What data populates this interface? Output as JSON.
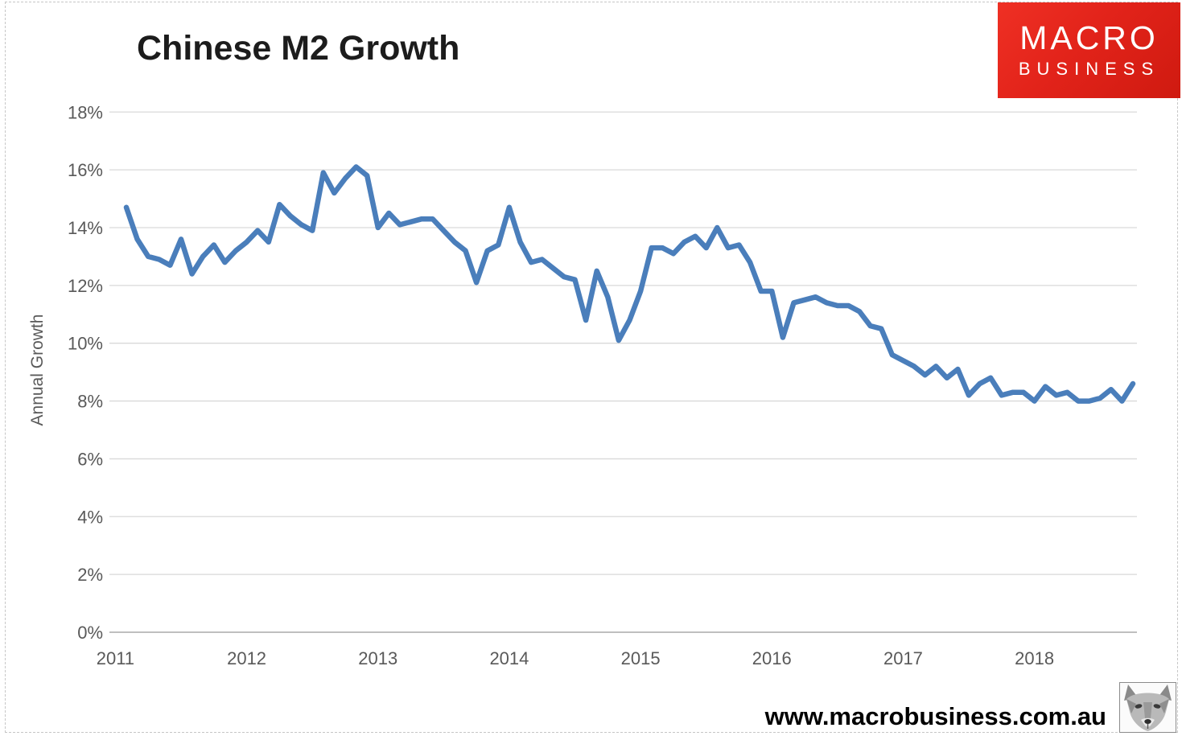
{
  "page": {
    "title": "Chinese M2 Growth",
    "website": "www.macrobusiness.com.au",
    "logo": {
      "line1": "MACRO",
      "line2": "BUSINESS",
      "bg_color": "#e2231a",
      "text_color": "#ffffff"
    }
  },
  "chart_data": {
    "type": "line",
    "title": "Chinese M2 Growth",
    "xlabel": "",
    "ylabel": "Annual Growth",
    "legend_position": "none",
    "grid": "horizontal",
    "series_name": "Chinese M2 annual growth",
    "series_color": "#4a7ebb",
    "grid_color": "#d9d9d9",
    "axis_color": "#bfbfbf",
    "tick_label_color": "#595959",
    "ylim": [
      0,
      18
    ],
    "y_ticks": [
      0,
      2,
      4,
      6,
      8,
      10,
      12,
      14,
      16,
      18
    ],
    "y_tick_suffix": "%",
    "x_tick_years": [
      "2011",
      "2012",
      "2013",
      "2014",
      "2015",
      "2016",
      "2017",
      "2018"
    ],
    "x": [
      "2011-07",
      "2011-08",
      "2011-09",
      "2011-10",
      "2011-11",
      "2011-12",
      "2012-01",
      "2012-02",
      "2012-03",
      "2012-04",
      "2012-05",
      "2012-06",
      "2012-07",
      "2012-08",
      "2012-09",
      "2012-10",
      "2012-11",
      "2012-12",
      "2013-01",
      "2013-02",
      "2013-03",
      "2013-04",
      "2013-05",
      "2013-06",
      "2013-07",
      "2013-08",
      "2013-09",
      "2013-10",
      "2013-11",
      "2013-12",
      "2014-01",
      "2014-02",
      "2014-03",
      "2014-04",
      "2014-05",
      "2014-06",
      "2014-07",
      "2014-08",
      "2014-09",
      "2014-10",
      "2014-11",
      "2014-12",
      "2015-01",
      "2015-02",
      "2015-03",
      "2015-04",
      "2015-05",
      "2015-06",
      "2015-07",
      "2015-08",
      "2015-09",
      "2015-10",
      "2015-11",
      "2015-12",
      "2016-01",
      "2016-02",
      "2016-03",
      "2016-04",
      "2016-05",
      "2016-06",
      "2016-07",
      "2016-08",
      "2016-09",
      "2016-10",
      "2016-11",
      "2016-12",
      "2017-01",
      "2017-02",
      "2017-03",
      "2017-04",
      "2017-05",
      "2017-06",
      "2017-07",
      "2017-08",
      "2017-09",
      "2017-10",
      "2017-11",
      "2017-12",
      "2018-01",
      "2018-02",
      "2018-03",
      "2018-04",
      "2018-05",
      "2018-06",
      "2018-07",
      "2018-08",
      "2018-09",
      "2018-10",
      "2018-11",
      "2018-12",
      "2019-01",
      "2019-02",
      "2019-03"
    ],
    "values": [
      14.7,
      13.6,
      13.0,
      12.9,
      12.7,
      13.6,
      12.4,
      13.0,
      13.4,
      12.8,
      13.2,
      13.5,
      13.9,
      13.5,
      14.8,
      14.4,
      14.1,
      13.9,
      15.9,
      15.2,
      15.7,
      16.1,
      15.8,
      14.0,
      14.5,
      14.1,
      14.2,
      14.3,
      14.3,
      13.9,
      13.5,
      13.2,
      12.1,
      13.2,
      13.4,
      14.7,
      13.5,
      12.8,
      12.9,
      12.6,
      12.3,
      12.2,
      10.8,
      12.5,
      11.6,
      10.1,
      10.8,
      11.8,
      13.3,
      13.3,
      13.1,
      13.5,
      13.7,
      13.3,
      14.0,
      13.3,
      13.4,
      12.8,
      11.8,
      11.8,
      10.2,
      11.4,
      11.5,
      11.6,
      11.4,
      11.3,
      11.3,
      11.1,
      10.6,
      10.5,
      9.6,
      9.4,
      9.2,
      8.9,
      9.2,
      8.8,
      9.1,
      8.2,
      8.6,
      8.8,
      8.2,
      8.3,
      8.3,
      8.0,
      8.5,
      8.2,
      8.3,
      8.0,
      8.0,
      8.1,
      8.4,
      8.0,
      8.6
    ]
  }
}
